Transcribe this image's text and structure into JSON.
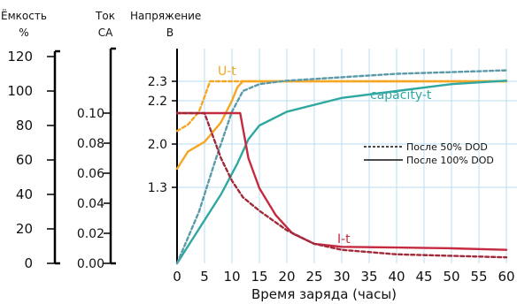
{
  "chart_data": {
    "type": "line",
    "axes": {
      "capacity": {
        "title_line1": "Ёмкость",
        "title_line2": "%",
        "ticks": [
          "0",
          "20",
          "40",
          "60",
          "80",
          "100",
          "120"
        ],
        "range": [
          0,
          120
        ]
      },
      "current": {
        "title_line1": "Ток",
        "title_line2": "CA",
        "ticks": [
          "0.00",
          "0.02",
          "0.04",
          "0.06",
          "0.08",
          "0.10"
        ],
        "range": [
          0,
          0.1
        ]
      },
      "voltage": {
        "title_line1": "Напряжение",
        "title_line2": "В",
        "ticks": [
          "1.3",
          "2.0",
          "2.2",
          "2.3"
        ]
      }
    },
    "xlabel": "Время заряда (часы)",
    "x_ticks": [
      "0",
      "5",
      "10",
      "15",
      "20",
      "25",
      "30",
      "35",
      "40",
      "45",
      "50",
      "55",
      "60"
    ],
    "xlim": [
      0,
      60
    ],
    "grid": true,
    "series": [
      {
        "name": "U-t",
        "label": "U-t",
        "color": "#f5a623",
        "style": "solid",
        "unit": "V",
        "x": [
          0,
          2,
          5,
          8,
          10,
          11,
          12,
          20,
          40,
          60
        ],
        "y": [
          1.6,
          1.88,
          2.01,
          2.1,
          2.2,
          2.27,
          2.3,
          2.3,
          2.3,
          2.3
        ]
      },
      {
        "name": "U-t (50% DOD)",
        "color": "#f5a623",
        "style": "dashed",
        "unit": "V",
        "x": [
          0,
          2,
          4,
          5,
          6,
          10,
          20,
          60
        ],
        "y": [
          2.06,
          2.09,
          2.15,
          2.22,
          2.3,
          2.3,
          2.3,
          2.3
        ]
      },
      {
        "name": "capacity-t",
        "label": "capacity-t",
        "color": "#2ea8a0",
        "style": "solid",
        "unit": "%",
        "x": [
          0,
          4,
          8,
          11,
          13,
          15,
          20,
          30,
          40,
          50,
          60
        ],
        "y": [
          0,
          20,
          40,
          58,
          72,
          80,
          88,
          96,
          100,
          104,
          106
        ]
      },
      {
        "name": "capacity-t (50% DOD)",
        "color": "#5b9aa8",
        "style": "dashed",
        "unit": "%",
        "x": [
          0,
          4,
          7,
          10,
          12,
          15,
          20,
          30,
          40,
          50,
          60
        ],
        "y": [
          0,
          30,
          60,
          88,
          100,
          104,
          106,
          108,
          110,
          111,
          112
        ]
      },
      {
        "name": "I-t",
        "label": "I-t",
        "color": "#c62a3f",
        "style": "solid",
        "unit": "CA",
        "x": [
          0,
          10,
          11.5,
          12,
          13,
          15,
          18,
          21,
          25,
          30,
          40,
          50,
          60
        ],
        "y": [
          0.1,
          0.1,
          0.1,
          0.09,
          0.07,
          0.05,
          0.032,
          0.02,
          0.013,
          0.011,
          0.0105,
          0.01,
          0.009
        ]
      },
      {
        "name": "I-t (50% DOD)",
        "color": "#a02a3a",
        "style": "dashed",
        "unit": "CA",
        "x": [
          0,
          5,
          6,
          8,
          10,
          12,
          15,
          20,
          25,
          30,
          40,
          50,
          60
        ],
        "y": [
          0.1,
          0.1,
          0.09,
          0.07,
          0.055,
          0.044,
          0.035,
          0.022,
          0.013,
          0.009,
          0.006,
          0.005,
          0.004
        ]
      }
    ],
    "legend": {
      "placement": "middle-right",
      "items": [
        {
          "label": "После 50% DOD",
          "style": "dashed"
        },
        {
          "label": "После 100% DOD",
          "style": "solid"
        }
      ]
    }
  }
}
